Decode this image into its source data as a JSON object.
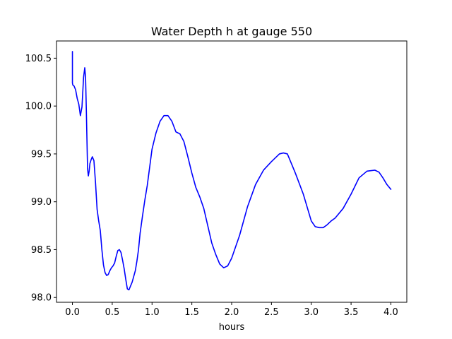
{
  "chart_data": {
    "type": "line",
    "title": "Water Depth h at gauge 550",
    "xlabel": "hours",
    "ylabel": "",
    "xlim": [
      -0.2,
      4.2
    ],
    "ylim": [
      97.95,
      100.68
    ],
    "xticks": [
      0.0,
      0.5,
      1.0,
      1.5,
      2.0,
      2.5,
      3.0,
      3.5,
      4.0
    ],
    "xtick_labels": [
      "0.0",
      "0.5",
      "1.0",
      "1.5",
      "2.0",
      "2.5",
      "3.0",
      "3.5",
      "4.0"
    ],
    "yticks": [
      98.0,
      98.5,
      99.0,
      99.5,
      100.0,
      100.5
    ],
    "ytick_labels": [
      "98.0",
      "98.5",
      "99.0",
      "99.5",
      "100.0",
      "100.5"
    ],
    "grid": false,
    "legend": "none",
    "series": [
      {
        "color": "#0000ff",
        "x": [
          0.0,
          0.0,
          0.005,
          0.02,
          0.04,
          0.06,
          0.08,
          0.1,
          0.12,
          0.14,
          0.155,
          0.165,
          0.175,
          0.19,
          0.2,
          0.21,
          0.22,
          0.235,
          0.25,
          0.27,
          0.29,
          0.31,
          0.33,
          0.35,
          0.37,
          0.39,
          0.41,
          0.43,
          0.45,
          0.47,
          0.49,
          0.51,
          0.53,
          0.55,
          0.57,
          0.59,
          0.61,
          0.63,
          0.65,
          0.67,
          0.69,
          0.71,
          0.73,
          0.75,
          0.77,
          0.79,
          0.81,
          0.83,
          0.85,
          0.88,
          0.91,
          0.94,
          0.97,
          1.0,
          1.05,
          1.1,
          1.15,
          1.2,
          1.25,
          1.3,
          1.35,
          1.4,
          1.45,
          1.5,
          1.55,
          1.6,
          1.65,
          1.7,
          1.75,
          1.8,
          1.85,
          1.9,
          1.95,
          2.0,
          2.1,
          2.2,
          2.3,
          2.4,
          2.5,
          2.6,
          2.65,
          2.7,
          2.75,
          2.8,
          2.9,
          3.0,
          3.05,
          3.1,
          3.15,
          3.2,
          3.25,
          3.3,
          3.4,
          3.5,
          3.6,
          3.7,
          3.8,
          3.85,
          3.9,
          3.95,
          4.0
        ],
        "y": [
          100.57,
          100.24,
          100.22,
          100.21,
          100.17,
          100.08,
          100.02,
          99.9,
          99.99,
          100.3,
          100.4,
          100.3,
          99.95,
          99.35,
          99.27,
          99.32,
          99.4,
          99.44,
          99.47,
          99.43,
          99.2,
          98.92,
          98.8,
          98.7,
          98.5,
          98.34,
          98.26,
          98.23,
          98.24,
          98.28,
          98.31,
          98.33,
          98.36,
          98.43,
          98.49,
          98.5,
          98.47,
          98.39,
          98.3,
          98.19,
          98.09,
          98.08,
          98.12,
          98.16,
          98.22,
          98.28,
          98.38,
          98.5,
          98.67,
          98.85,
          99.02,
          99.17,
          99.36,
          99.55,
          99.72,
          99.84,
          99.9,
          99.9,
          99.84,
          99.73,
          99.71,
          99.63,
          99.47,
          99.3,
          99.15,
          99.05,
          98.93,
          98.75,
          98.57,
          98.45,
          98.35,
          98.31,
          98.33,
          98.41,
          98.65,
          98.95,
          99.18,
          99.33,
          99.42,
          99.5,
          99.51,
          99.5,
          99.4,
          99.3,
          99.08,
          98.8,
          98.74,
          98.73,
          98.73,
          98.76,
          98.8,
          98.83,
          98.93,
          99.08,
          99.25,
          99.32,
          99.33,
          99.31,
          99.25,
          99.18,
          99.13
        ]
      }
    ]
  }
}
